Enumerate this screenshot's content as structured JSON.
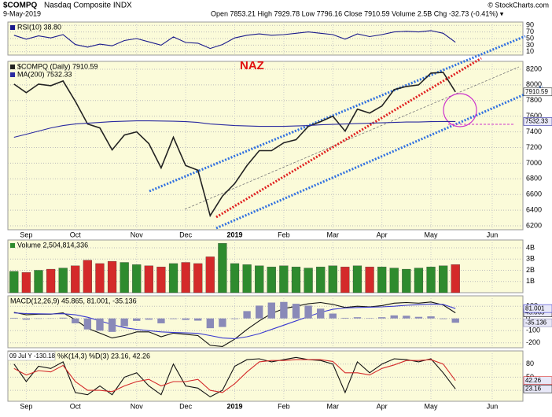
{
  "header": {
    "symbol": "$COMPQ",
    "name": "Nasdaq Composite INDX",
    "date": "9-May-2019",
    "quote": "Open 7853.21 High 7929.78 Low 7796.16 Close 7910.59 Volume 2.5B Chg -32.73 (-0.41%) ▾",
    "credit": "© StockCharts.com"
  },
  "chart_data": [
    {
      "type": "line",
      "ylim": [
        0,
        100
      ],
      "yticks": [
        10,
        30,
        50,
        70,
        90
      ],
      "grid": true,
      "series": [
        {
          "name": "RSI(10) 38.80",
          "color": "#1a1a8c",
          "values": [
            60,
            48,
            58,
            52,
            62,
            32,
            24,
            33,
            28,
            44,
            50,
            40,
            30,
            55,
            38,
            36,
            20,
            32,
            52,
            60,
            64,
            60,
            62,
            66,
            70,
            66,
            62,
            48,
            64,
            56,
            62,
            70,
            72,
            70,
            74,
            66,
            38.8,
            null,
            null,
            null,
            null,
            null
          ]
        }
      ]
    },
    {
      "type": "line",
      "annotation": "NAZ",
      "ylim": [
        6150,
        8300
      ],
      "yticks": [
        6200,
        6400,
        6600,
        6800,
        7000,
        7200,
        7400,
        7600,
        7800,
        8000,
        8200
      ],
      "grid": true,
      "value_boxes": true,
      "categories": [
        null,
        "Sep",
        null,
        null,
        null,
        "Oct",
        null,
        null,
        null,
        null,
        "Nov",
        null,
        null,
        null,
        "Dec",
        null,
        null,
        null,
        "2019",
        null,
        null,
        null,
        "Feb",
        null,
        null,
        null,
        "Mar",
        null,
        null,
        null,
        "Apr",
        null,
        null,
        null,
        "May",
        null,
        null,
        null,
        null,
        "Jun",
        null,
        null
      ],
      "series": [
        {
          "name": "$COMPQ (Daily) 7910.59",
          "color": "#222222",
          "values": [
            8010,
            7900,
            8010,
            7990,
            8050,
            7790,
            7500,
            7450,
            7170,
            7360,
            7400,
            7250,
            6940,
            7330,
            6970,
            6910,
            6330,
            6580,
            6740,
            6970,
            7160,
            7160,
            7260,
            7300,
            7470,
            7530,
            7600,
            7410,
            7690,
            7640,
            7730,
            7940,
            7980,
            8000,
            8150,
            8160,
            7910.59,
            null,
            null,
            null,
            null,
            null
          ]
        },
        {
          "name": "MA(200) 7532.33",
          "color": "#2a2aa0",
          "values": [
            7330,
            7370,
            7410,
            7450,
            7480,
            7500,
            7510,
            7520,
            7530,
            7535,
            7540,
            7540,
            7538,
            7535,
            7530,
            7520,
            7500,
            7490,
            7480,
            7475,
            7470,
            7470,
            7470,
            7475,
            7480,
            7490,
            7495,
            7500,
            7505,
            7510,
            7515,
            7520,
            7525,
            7525,
            7530,
            7532,
            7532.33,
            null,
            null,
            null,
            null,
            null
          ]
        }
      ]
    },
    {
      "type": "bar",
      "ylim": [
        0,
        4700000000
      ],
      "yticks": [
        {
          "value": 1000000000,
          "label": "1B"
        },
        {
          "value": 2000000000,
          "label": "2B"
        },
        {
          "value": 3000000000,
          "label": "3B"
        },
        {
          "value": 4000000000,
          "label": "4B"
        }
      ],
      "grid": true,
      "series": [
        {
          "name": "Volume 2,504,814,336",
          "color": "#2e8b2e",
          "down_color": "#d42a2a",
          "kind": "bar",
          "values": [
            1900000000.0,
            1800000000.0,
            2000000000.0,
            2100000000.0,
            2200000000.0,
            2400000000.0,
            2900000000.0,
            2600000000.0,
            2800000000.0,
            2700000000.0,
            2500000000.0,
            2400000000.0,
            2300000000.0,
            2600000000.0,
            2700000000.0,
            2600000000.0,
            3200000000.0,
            4400000000.0,
            2600000000.0,
            2500000000.0,
            2400000000.0,
            2300000000.0,
            2400000000.0,
            2300000000.0,
            2200000000.0,
            2300000000.0,
            2400000000.0,
            2300000000.0,
            2400000000.0,
            2300000000.0,
            2300000000.0,
            2200000000.0,
            2100000000.0,
            2200000000.0,
            2300000000.0,
            2400000000.0,
            2504814336,
            null,
            null,
            null,
            null,
            null
          ]
        }
      ]
    },
    {
      "type": "line",
      "title": "MACD(12,26,9) 45.865, 81.001, -35.136",
      "ylim": [
        -240,
        185
      ],
      "yticks": [
        -200,
        -100,
        0,
        100
      ],
      "grid": true,
      "value_boxes": true,
      "series": [
        {
          "color": "#111111",
          "values": [
            50,
            30,
            35,
            35,
            45,
            -10,
            -80,
            -120,
            -160,
            -140,
            -110,
            -110,
            -150,
            -120,
            -130,
            -140,
            -220,
            -230,
            -170,
            -90,
            -20,
            40,
            80,
            100,
            120,
            130,
            115,
            90,
            100,
            95,
            105,
            125,
            130,
            125,
            135,
            110,
            45.865,
            null,
            null,
            null,
            null,
            null
          ]
        },
        {
          "color": "#3a3ad0",
          "values": [
            45,
            40,
            38,
            37,
            39,
            30,
            10,
            -20,
            -50,
            -75,
            -90,
            -100,
            -110,
            -115,
            -118,
            -122,
            -140,
            -160,
            -165,
            -150,
            -125,
            -90,
            -55,
            -20,
            15,
            50,
            75,
            85,
            90,
            92,
            95,
            100,
            108,
            112,
            118,
            115,
            81.001,
            null,
            null,
            null,
            null,
            null
          ]
        },
        {
          "color": "#8a8ab8",
          "kind": "bar",
          "values": [
            5,
            -10,
            -3,
            -2,
            6,
            -40,
            -90,
            -100,
            -110,
            -65,
            -20,
            -10,
            -40,
            -5,
            -12,
            -18,
            -80,
            -70,
            -5,
            60,
            105,
            130,
            135,
            120,
            105,
            80,
            40,
            5,
            10,
            3,
            10,
            25,
            22,
            13,
            17,
            -5,
            -35.136,
            null,
            null,
            null,
            null,
            null
          ]
        }
      ]
    },
    {
      "type": "line",
      "title": "%K(14,3) %D(3) 23.16, 42.26",
      "annotation": "09 Jul Y -130.18",
      "ylim": [
        -5,
        110
      ],
      "yticks": [
        20,
        50,
        80
      ],
      "grid": true,
      "value_boxes": true,
      "categories": [
        null,
        "Sep",
        null,
        null,
        null,
        "Oct",
        null,
        null,
        null,
        null,
        "Nov",
        null,
        null,
        null,
        "Dec",
        null,
        null,
        null,
        "2019",
        null,
        null,
        null,
        "Feb",
        null,
        null,
        null,
        "Mar",
        null,
        null,
        null,
        "Apr",
        null,
        null,
        null,
        "May",
        null,
        null,
        null,
        null,
        "Jun",
        null,
        null
      ],
      "series": [
        {
          "color": "#111111",
          "values": [
            80,
            40,
            75,
            70,
            85,
            15,
            10,
            30,
            10,
            50,
            60,
            30,
            10,
            80,
            30,
            25,
            5,
            20,
            75,
            90,
            92,
            85,
            90,
            95,
            90,
            88,
            80,
            15,
            85,
            60,
            80,
            92,
            90,
            85,
            92,
            60,
            23.16,
            null,
            null,
            null,
            null,
            null
          ]
        },
        {
          "color": "#d42a2a",
          "values": [
            70,
            55,
            65,
            62,
            77,
            40,
            20,
            20,
            17,
            30,
            40,
            45,
            30,
            40,
            40,
            45,
            20,
            15,
            35,
            62,
            85,
            88,
            88,
            90,
            90,
            90,
            86,
            60,
            60,
            55,
            70,
            78,
            88,
            88,
            90,
            80,
            42.26,
            null,
            null,
            null,
            null,
            null
          ]
        }
      ]
    }
  ]
}
